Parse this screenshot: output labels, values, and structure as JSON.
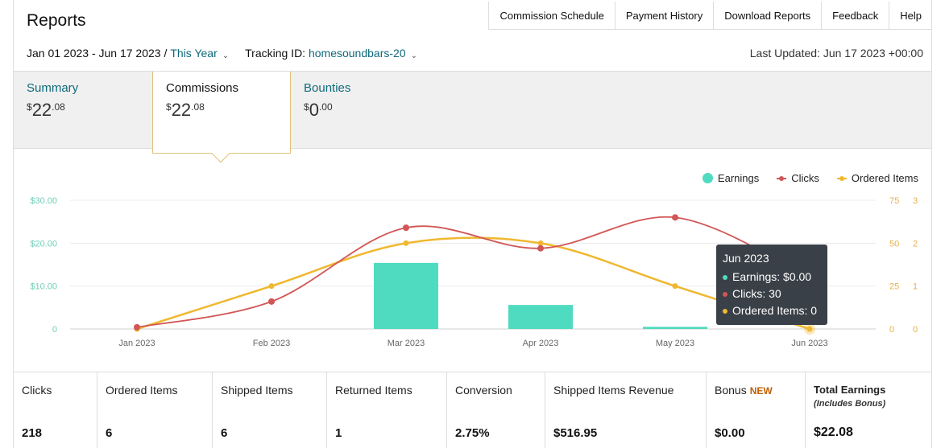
{
  "header": {
    "title": "Reports",
    "links": [
      "Commission Schedule",
      "Payment History",
      "Download Reports",
      "Feedback",
      "Help"
    ]
  },
  "filters": {
    "date_range": "Jan 01 2023 - Jun 17 2023 /",
    "period": "This Year",
    "tracking_label": "Tracking ID:",
    "tracking_id": "homesoundbars-20",
    "last_updated": "Last Updated: Jun 17 2023 +00:00"
  },
  "tabs": [
    {
      "label": "Summary",
      "currency": "$",
      "whole": "22",
      "cents": ".08",
      "active": false
    },
    {
      "label": "Commissions",
      "currency": "$",
      "whole": "22",
      "cents": ".08",
      "active": true
    },
    {
      "label": "Bounties",
      "currency": "$",
      "whole": "0",
      "cents": ".00",
      "active": false
    }
  ],
  "legend": {
    "earnings": "Earnings",
    "clicks": "Clicks",
    "ordered": "Ordered Items"
  },
  "colors": {
    "earnings": "#4fdbbf",
    "clicks": "#d25656",
    "ordered": "#f0b830",
    "axis_left": "#6fcfb7",
    "axis_right": "#e8b04a",
    "link": "#0e6a7a"
  },
  "chart_data": {
    "type": "bar",
    "categories": [
      "Jan 2023",
      "Feb 2023",
      "Mar 2023",
      "Apr 2023",
      "May 2023",
      "Jun 2023"
    ],
    "series": [
      {
        "name": "Earnings",
        "type": "bar",
        "axis": "left",
        "values": [
          0,
          0,
          15.4,
          5.6,
          0.5,
          0
        ]
      },
      {
        "name": "Clicks",
        "type": "line",
        "axis": "right1",
        "values": [
          1,
          16,
          59,
          47,
          65,
          30
        ]
      },
      {
        "name": "Ordered Items",
        "type": "line",
        "axis": "right2",
        "values": [
          0,
          1,
          2,
          2,
          1,
          0
        ]
      }
    ],
    "y_left": {
      "ticks": [
        "0",
        "$10.00",
        "$20.00",
        "$30.00"
      ],
      "range": [
        0,
        30
      ]
    },
    "y_right1": {
      "ticks": [
        "0",
        "25",
        "50",
        "75"
      ],
      "range": [
        0,
        75
      ]
    },
    "y_right2": {
      "ticks": [
        "0",
        "1",
        "2",
        "3"
      ],
      "range": [
        0,
        3
      ]
    },
    "grid": true,
    "legend_position": "top-right"
  },
  "tooltip": {
    "title": "Jun 2023",
    "earnings": "Earnings: $0.00",
    "clicks": "Clicks: 30",
    "ordered": "Ordered Items: 0"
  },
  "stats": [
    {
      "label": "Clicks",
      "value": "218"
    },
    {
      "label": "Ordered Items",
      "value": "6"
    },
    {
      "label": "Shipped Items",
      "value": "6"
    },
    {
      "label": "Returned Items",
      "value": "1"
    },
    {
      "label": "Conversion",
      "value": "2.75%"
    },
    {
      "label": "Shipped Items Revenue",
      "value": "$516.95"
    },
    {
      "label": "Bonus",
      "badge": "NEW",
      "value": "$0.00"
    },
    {
      "label": "Total Earnings",
      "sub": "(Includes Bonus)",
      "value": "$22.08"
    }
  ]
}
